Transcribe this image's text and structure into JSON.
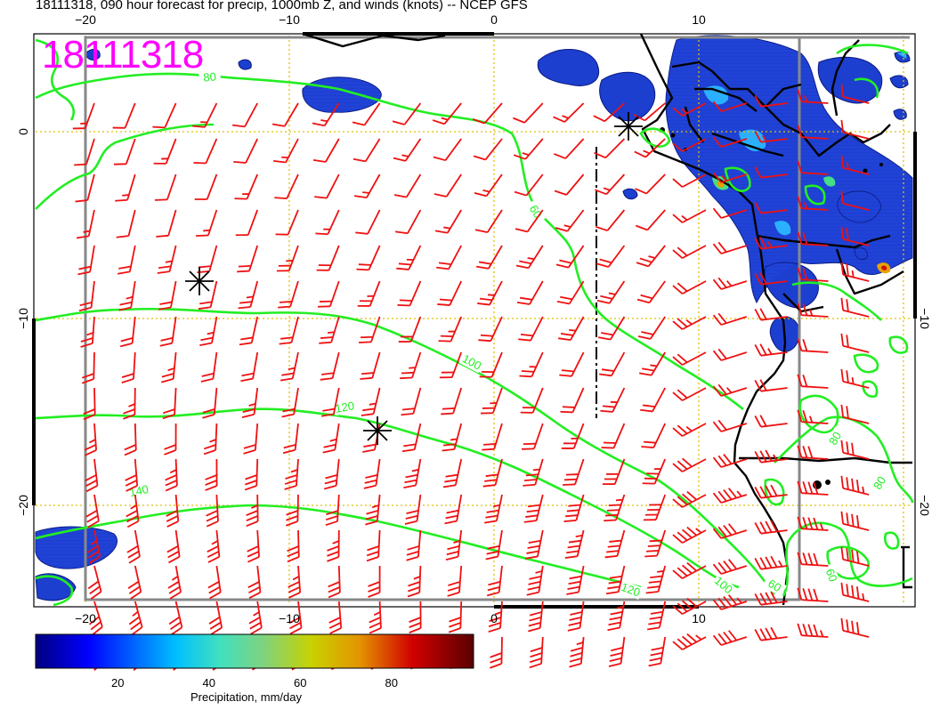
{
  "title": "18111318, 090 hour forecast for precip, 1000mb Z, and winds (knots) -- NCEP GFS",
  "date_stamp": "18111318",
  "axes": {
    "lon_ticks_top": [
      "−20",
      "−10",
      "0",
      "10"
    ],
    "lon_ticks_bottom": [
      "−20",
      "−10",
      "0",
      "10"
    ],
    "lat_ticks_left": [
      "0",
      "−10",
      "−20"
    ],
    "lat_ticks_right": [
      "−10",
      "−20"
    ],
    "lon_range": [
      -22.5,
      20.5
    ],
    "lat_range": [
      -24.8,
      5.2
    ],
    "grid_lines_dotted": true
  },
  "contours": {
    "field": "1000mb Z",
    "color": "#22ee22",
    "labels": [
      "80",
      "60",
      "100",
      "120",
      "140",
      "120",
      "100",
      "60",
      "80",
      "80",
      "60"
    ]
  },
  "winds": {
    "units": "knots",
    "color": "#ee1111"
  },
  "markers": [
    "asterisk",
    "asterisk",
    "asterisk"
  ],
  "colorbar": {
    "title": "Precipitation, mm/day",
    "ticks": [
      "20",
      "40",
      "60",
      "80"
    ],
    "range": [
      2,
      98
    ],
    "colormap": [
      "#00007f",
      "#0000ff",
      "#00bfff",
      "#40e0c0",
      "#7fd27f",
      "#c8d200",
      "#e39400",
      "#d20000",
      "#7f0000"
    ]
  },
  "chart_data": {
    "type": "map",
    "title": "18111318, 090 hour forecast for precip, 1000mb Z, and winds (knots) -- NCEP GFS",
    "xlim": [
      -22.5,
      20.5
    ],
    "ylim": [
      -24.8,
      5.2
    ],
    "contour_levels": [
      60,
      80,
      100,
      120,
      140
    ],
    "colorbar_label": "Precipitation, mm/day",
    "colorbar_ticks": [
      20,
      40,
      60,
      80
    ]
  }
}
